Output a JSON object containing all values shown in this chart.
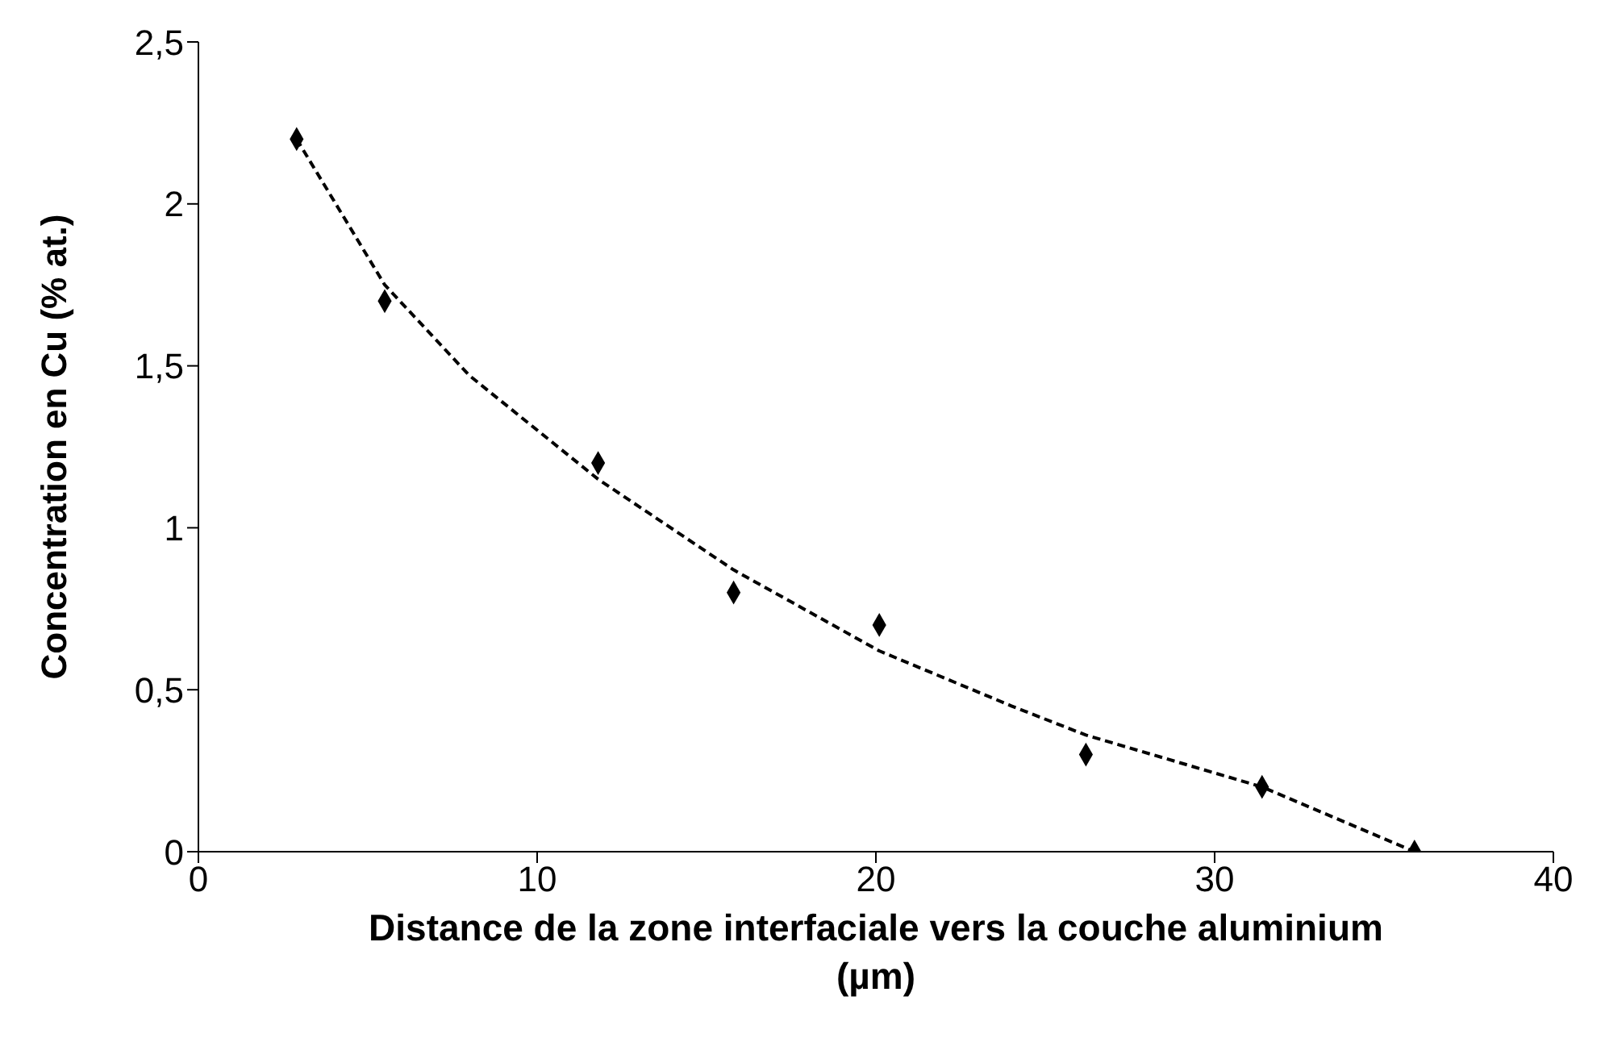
{
  "chart_data": {
    "type": "scatter",
    "xlabel": "Distance de la zone interfaciale vers la couche aluminium (µm)",
    "ylabel": "Concentration en Cu (% at.)",
    "xlim": [
      0,
      40
    ],
    "ylim": [
      0,
      2.5
    ],
    "xticks": [
      0,
      10,
      20,
      30,
      40
    ],
    "yticks": [
      0,
      {
        "value": 0.5,
        "label": "0,5"
      },
      1,
      {
        "value": 1.5,
        "label": "1,5"
      },
      2,
      {
        "value": 2.5,
        "label": "2,5"
      }
    ],
    "marker": "diamond",
    "x": [
      2.9,
      5.5,
      11.8,
      15.8,
      20.1,
      26.2,
      31.4,
      35.9
    ],
    "series": [
      {
        "color": "#000000",
        "values": [
          2.2,
          1.7,
          1.2,
          0.8,
          0.7,
          0.3,
          0.2,
          0
        ]
      },
      {
        "type": "line",
        "color": "#000000",
        "line_style": "dashed",
        "marker": "none",
        "x": [
          2.9,
          5.5,
          8,
          11.8,
          15.8,
          20.1,
          24,
          26.2,
          31.4,
          35.9
        ],
        "values": [
          2.2,
          1.75,
          1.47,
          1.15,
          0.87,
          0.62,
          0.45,
          0.36,
          0.2,
          0
        ]
      }
    ]
  }
}
